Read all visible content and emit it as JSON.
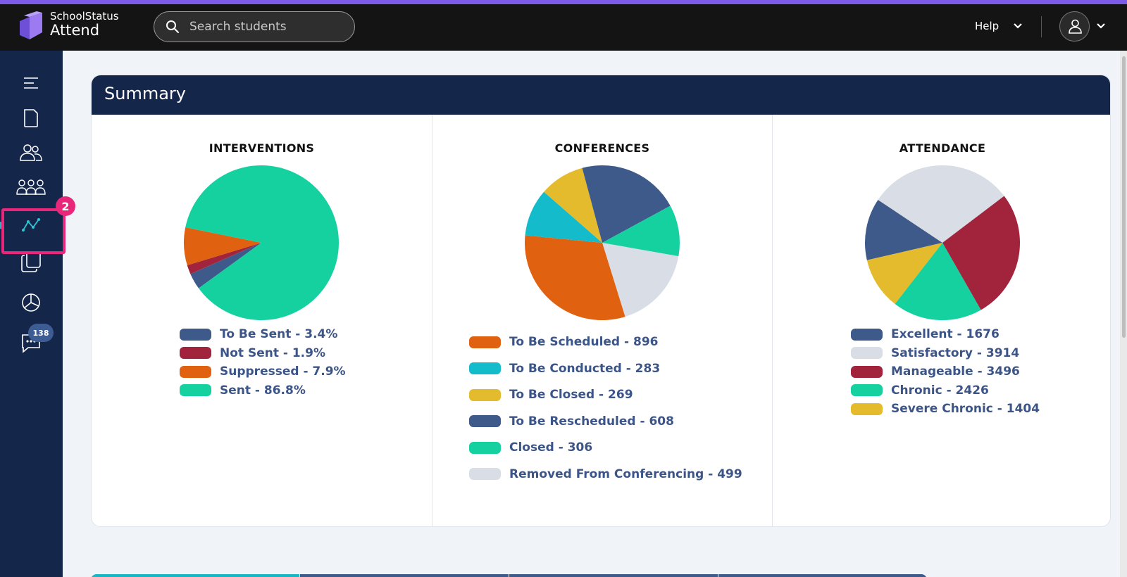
{
  "app": {
    "brand_top": "SchoolStatus",
    "brand_main": "Attend",
    "colors": {
      "accent_bar": "#7c5ce6",
      "header_bg": "#141414",
      "sidebar_bg": "#14264a",
      "highlight": "#e8277a"
    }
  },
  "search": {
    "placeholder": "Search students",
    "icon": "search-icon"
  },
  "header": {
    "help_label": "Help",
    "help_icon": "chevron-down-icon",
    "user_icon": "user-icon"
  },
  "sidebar": {
    "items": [
      {
        "name": "menu-icon"
      },
      {
        "name": "document-icon"
      },
      {
        "name": "users-icon"
      },
      {
        "name": "groups-icon"
      },
      {
        "name": "analytics-icon",
        "active": true
      },
      {
        "name": "copy-icon"
      },
      {
        "name": "pie-chart-icon"
      },
      {
        "name": "chat-icon",
        "badge": "138"
      }
    ],
    "step_badge": "2"
  },
  "summary": {
    "title": "Summary"
  },
  "chart_data": [
    {
      "type": "pie",
      "title": "INTERVENTIONS",
      "series": [
        {
          "name": "To Be Sent - 3.4%",
          "value": 3.4,
          "color": "#3e5a8a"
        },
        {
          "name": "Not Sent - 1.9%",
          "value": 1.9,
          "color": "#a2243c"
        },
        {
          "name": "Suppressed - 7.9%",
          "value": 7.9,
          "color": "#e0610f"
        },
        {
          "name": "Sent - 86.8%",
          "value": 86.8,
          "color": "#15d1a0"
        }
      ]
    },
    {
      "type": "pie",
      "title": "CONFERENCES",
      "series": [
        {
          "name": "To Be Scheduled - 896",
          "value": 896,
          "color": "#e0610f"
        },
        {
          "name": "To Be Conducted - 283",
          "value": 283,
          "color": "#14bccb"
        },
        {
          "name": "To Be Closed - 269",
          "value": 269,
          "color": "#e4bb2d"
        },
        {
          "name": "To Be Rescheduled - 608",
          "value": 608,
          "color": "#3e5a8a"
        },
        {
          "name": "Closed - 306",
          "value": 306,
          "color": "#15d1a0"
        },
        {
          "name": "Removed From Conferencing - 499",
          "value": 499,
          "color": "#d8dde6"
        }
      ]
    },
    {
      "type": "pie",
      "title": "ATTENDANCE",
      "series": [
        {
          "name": "Excellent - 1676",
          "value": 1676,
          "color": "#3e5a8a"
        },
        {
          "name": "Satisfactory - 3914",
          "value": 3914,
          "color": "#d8dde6"
        },
        {
          "name": "Manageable - 3496",
          "value": 3496,
          "color": "#a2243c"
        },
        {
          "name": "Chronic - 2426",
          "value": 2426,
          "color": "#15d1a0"
        },
        {
          "name": "Severe Chronic - 1404",
          "value": 1404,
          "color": "#e4bb2d"
        }
      ]
    }
  ]
}
